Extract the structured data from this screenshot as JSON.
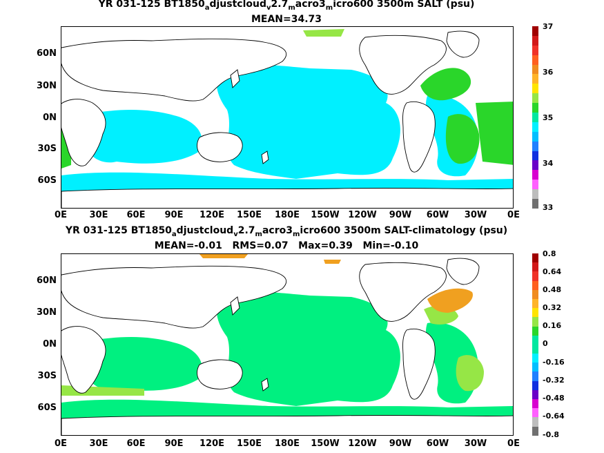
{
  "panels": [
    {
      "title_parts": [
        "YR 031-125 BT1850",
        "a",
        "djustcloud",
        "v",
        "2.7",
        "m",
        "acro3",
        "m",
        "icro600 3500m SALT (psu)"
      ],
      "stats": "MEAN=34.73",
      "colorbar_ticks": [
        "37",
        "36",
        "35",
        "34",
        "33"
      ],
      "colorbar_colors": [
        "#a00000",
        "#d21919",
        "#f03228",
        "#ff6020",
        "#f08c20",
        "#ffb428",
        "#ffe400",
        "#96e646",
        "#2ad62a",
        "#00e8a0",
        "#00f0ff",
        "#00bfff",
        "#2080ff",
        "#1030e0",
        "#6a00c8",
        "#d800d0",
        "#ff60ff",
        "#bdbdbd",
        "#707070"
      ],
      "ocean_color": "#00f0ff",
      "patch_color": "#2ad62a",
      "patch_color2": "#96e646"
    },
    {
      "title_parts": [
        "YR 031-125 BT1850",
        "a",
        "djustcloud",
        "v",
        "2.7",
        "m",
        "acro3",
        "m",
        "icro600 3500m SALT-climatology (psu)"
      ],
      "stats": "MEAN=-0.01   RMS=0.07   Max=0.39   Min=-0.10",
      "colorbar_ticks": [
        "0.8",
        "0.64",
        "0.48",
        "0.32",
        "0.16",
        "0",
        "-0.16",
        "-0.32",
        "-0.48",
        "-0.64",
        "-0.8"
      ],
      "colorbar_colors": [
        "#a00000",
        "#d21919",
        "#f03228",
        "#ff6020",
        "#f08c20",
        "#ffb428",
        "#ffe400",
        "#96e646",
        "#2ad62a",
        "#00e8a0",
        "#00e8a0",
        "#00f0ff",
        "#00bfff",
        "#2080ff",
        "#1030e0",
        "#6a00c8",
        "#d800d0",
        "#ff60ff",
        "#bdbdbd",
        "#707070"
      ],
      "ocean_color": "#00f080",
      "patch_color": "#96e646",
      "patch_color2": "#f0a020"
    }
  ],
  "axes": {
    "lat_labels": [
      "60N",
      "30N",
      "0N",
      "30S",
      "60S"
    ],
    "lon_labels": [
      "0E",
      "30E",
      "60E",
      "90E",
      "120E",
      "150E",
      "180E",
      "150W",
      "120W",
      "90W",
      "60W",
      "30W",
      "0E"
    ]
  }
}
